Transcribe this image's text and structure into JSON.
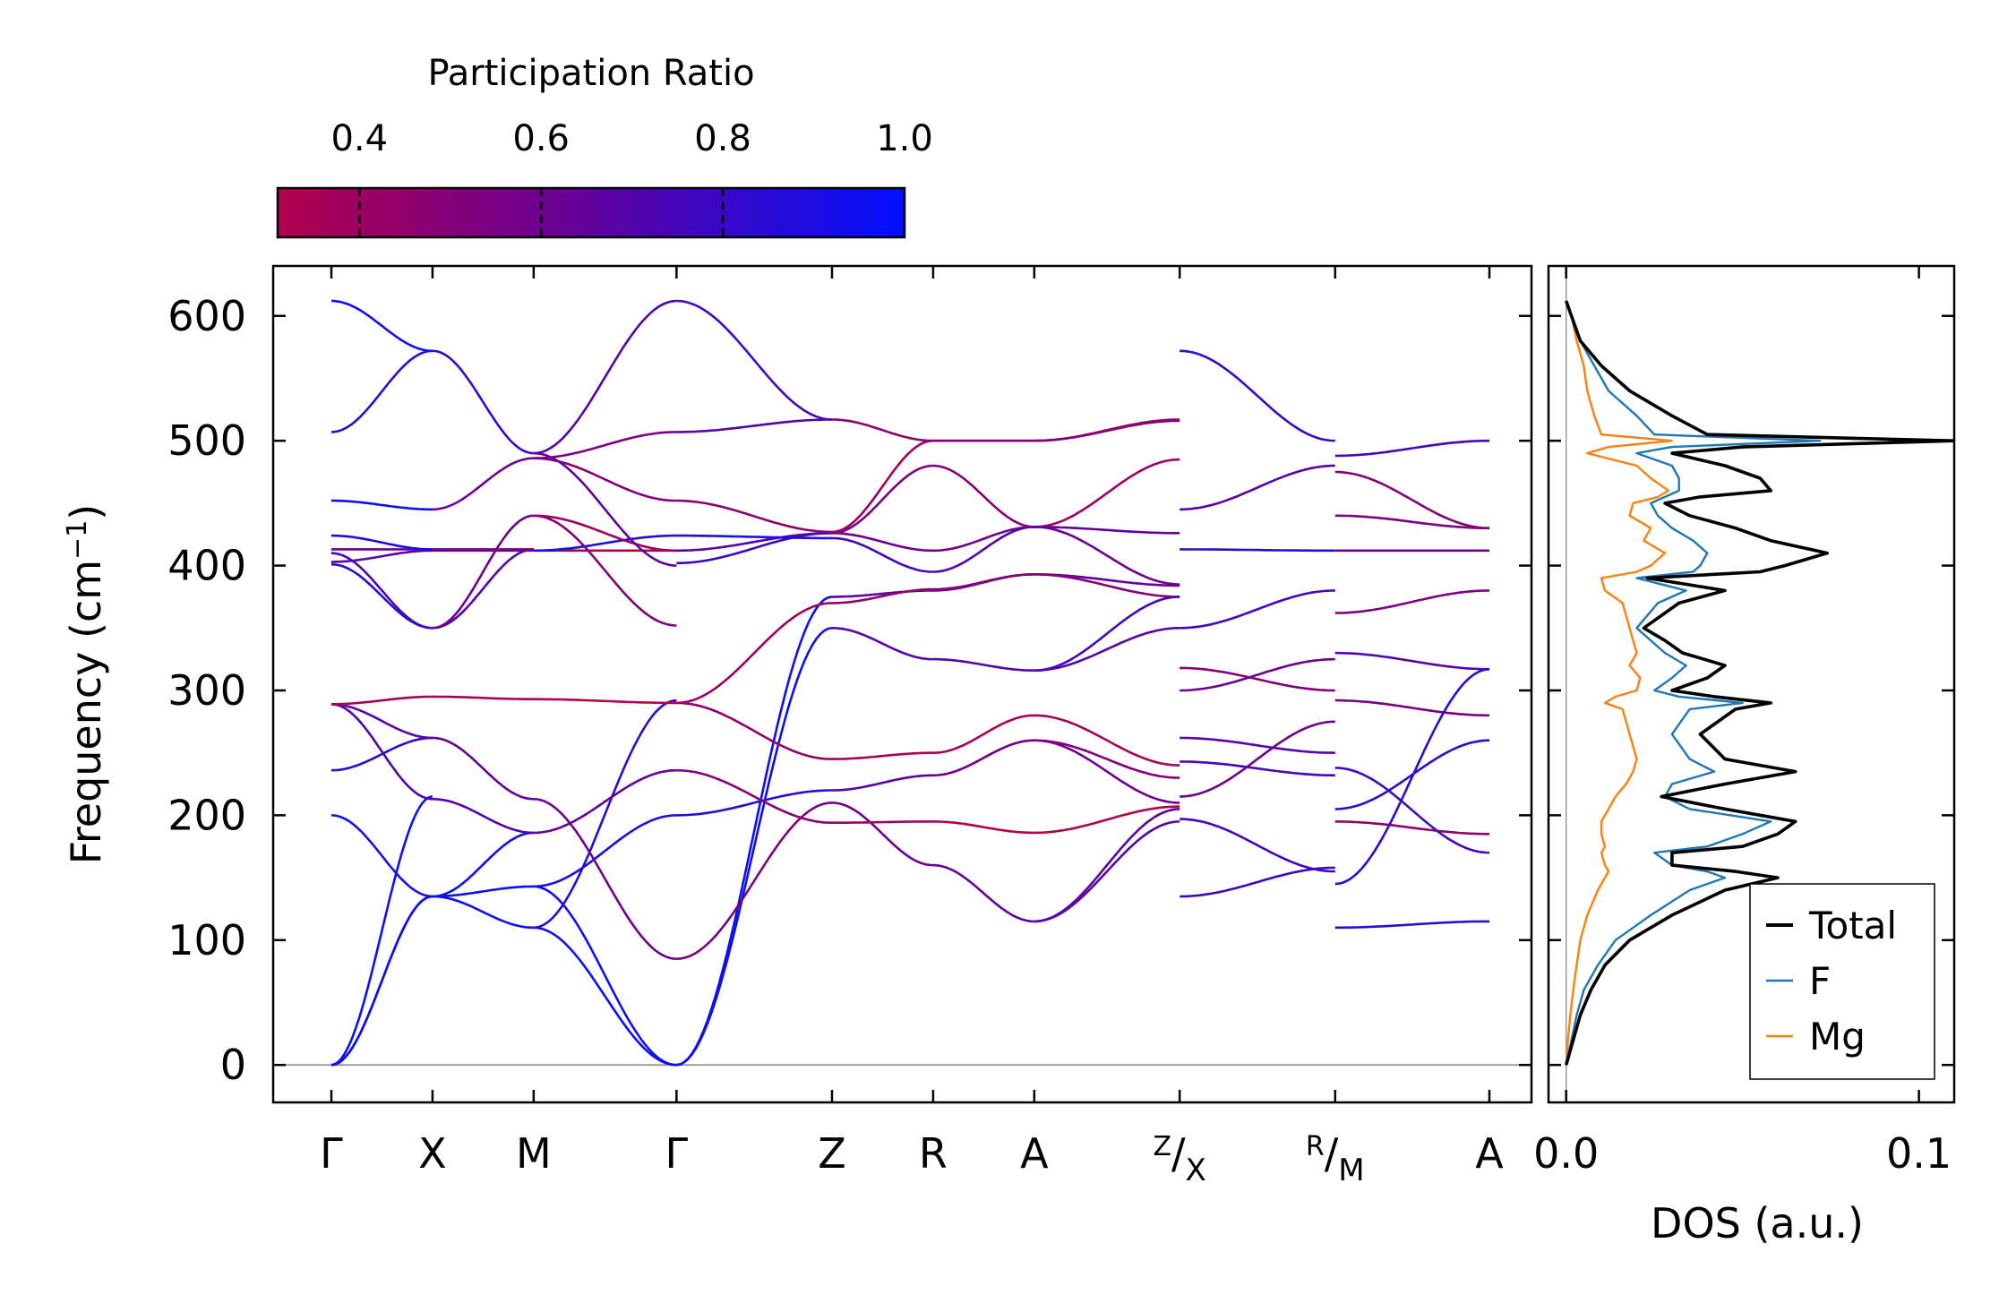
{
  "colors": {
    "cmap_low": "#b0004c",
    "cmap_mid": "#6a0094",
    "cmap_high": "#0011ff",
    "total": "#000000",
    "F": "#1f77b4",
    "Mg": "#ff7f0e",
    "zero_line": "#999999"
  },
  "chart_data": [
    {
      "type": "line",
      "name": "phonon-band-structure",
      "ylabel_main": "Frequency (cm",
      "ylabel_sup": "−1",
      "ylabel_end": ")",
      "ylim": [
        -30,
        640
      ],
      "yticks": [
        0,
        100,
        200,
        300,
        400,
        500,
        600
      ],
      "path_positions": [
        0,
        0.8,
        1.6,
        2.73,
        3.96,
        4.76,
        5.56,
        6.71,
        7.94,
        9.16
      ],
      "x_max": 9.6,
      "xticks": [
        {
          "x": 0,
          "main": "Γ",
          "sup": ""
        },
        {
          "x": 0.8,
          "main": "X",
          "sup": ""
        },
        {
          "x": 1.6,
          "main": "M",
          "sup": ""
        },
        {
          "x": 2.73,
          "main": "Γ",
          "sup": ""
        },
        {
          "x": 3.96,
          "main": "Z",
          "sup": ""
        },
        {
          "x": 4.76,
          "main": "R",
          "sup": ""
        },
        {
          "x": 5.56,
          "main": "A",
          "sup": ""
        },
        {
          "x": 6.71,
          "main": "X",
          "sup": "Z"
        },
        {
          "x": 7.94,
          "main": "M",
          "sup": "R"
        },
        {
          "x": 9.16,
          "main": "A",
          "sup": ""
        }
      ],
      "segments": [
        {
          "x0": 0,
          "x1": 0.8,
          "bands": [
            [
              0,
              135,
              0.95
            ],
            [
              0,
              135,
              0.95
            ],
            [
              0,
              215,
              0.95
            ],
            [
              200,
              135,
              0.92
            ],
            [
              236,
              262,
              0.85
            ],
            [
              289,
              213,
              0.72
            ],
            [
              289,
              262,
              0.68
            ],
            [
              289,
              295,
              0.35
            ],
            [
              401,
              350,
              0.85
            ],
            [
              403,
              412,
              0.7
            ],
            [
              410,
              350,
              0.75
            ],
            [
              413,
              413,
              0.6
            ],
            [
              424,
              413,
              0.9
            ],
            [
              452,
              445,
              0.95
            ],
            [
              507,
              572,
              0.85
            ],
            [
              612,
              572,
              0.95
            ]
          ]
        },
        {
          "x0": 0.8,
          "x1": 1.6,
          "bands": [
            [
              135,
              110,
              0.95
            ],
            [
              135,
              143,
              0.95
            ],
            [
              135,
              186,
              0.95
            ],
            [
              213,
              186,
              0.7
            ],
            [
              262,
              213,
              0.65
            ],
            [
              295,
              293,
              0.35
            ],
            [
              350,
              413,
              0.7
            ],
            [
              350,
              440,
              0.6
            ],
            [
              412,
              412,
              0.55
            ],
            [
              413,
              413,
              0.6
            ],
            [
              445,
              486,
              0.6
            ],
            [
              572,
              490,
              0.8
            ]
          ]
        },
        {
          "x0": 1.6,
          "x1": 2.73,
          "bands": [
            [
              110,
              0,
              0.95
            ],
            [
              143,
              0,
              0.95
            ],
            [
              110,
              292,
              0.85
            ],
            [
              143,
              200,
              0.9
            ],
            [
              186,
              236,
              0.65
            ],
            [
              213,
              85,
              0.6
            ],
            [
              293,
              290,
              0.3
            ],
            [
              412,
              412,
              0.3
            ],
            [
              412,
              424,
              0.9
            ],
            [
              440,
              352,
              0.5
            ],
            [
              440,
              412,
              0.4
            ],
            [
              486,
              452,
              0.5
            ],
            [
              486,
              507,
              0.55
            ],
            [
              490,
              612,
              0.7
            ],
            [
              490,
              400,
              0.65
            ]
          ]
        },
        {
          "x0": 2.73,
          "x1": 3.96,
          "bands": [
            [
              0,
              350,
              0.95
            ],
            [
              0,
              375,
              0.95
            ],
            [
              85,
              210,
              0.55
            ],
            [
              200,
              220,
              0.85
            ],
            [
              236,
              194,
              0.5
            ],
            [
              290,
              245,
              0.45
            ],
            [
              290,
              370,
              0.4
            ],
            [
              402,
              426,
              0.8
            ],
            [
              412,
              426,
              0.7
            ],
            [
              424,
              422,
              0.9
            ],
            [
              452,
              427,
              0.45
            ],
            [
              507,
              517,
              0.7
            ],
            [
              612,
              517,
              0.75
            ]
          ]
        },
        {
          "x0": 3.96,
          "x1": 4.76,
          "bands": [
            [
              350,
              325,
              0.7
            ],
            [
              375,
              380,
              0.65
            ],
            [
              210,
              160,
              0.6
            ],
            [
              220,
              232,
              0.7
            ],
            [
              194,
              195,
              0.4
            ],
            [
              245,
              250,
              0.35
            ],
            [
              370,
              381,
              0.45
            ],
            [
              426,
              412,
              0.6
            ],
            [
              426,
              480,
              0.55
            ],
            [
              422,
              395,
              0.75
            ],
            [
              427,
              500,
              0.4
            ],
            [
              517,
              500,
              0.45
            ]
          ]
        },
        {
          "x0": 4.76,
          "x1": 5.56,
          "bands": [
            [
              325,
              316,
              0.7
            ],
            [
              380,
              393,
              0.6
            ],
            [
              160,
              115,
              0.65
            ],
            [
              232,
              260,
              0.6
            ],
            [
              195,
              186,
              0.3
            ],
            [
              250,
              280,
              0.35
            ],
            [
              381,
              393,
              0.5
            ],
            [
              412,
              431,
              0.6
            ],
            [
              480,
              431,
              0.5
            ],
            [
              395,
              431,
              0.7
            ],
            [
              500,
              500,
              0.45
            ],
            [
              500,
              500,
              0.5
            ]
          ]
        },
        {
          "x0": 5.56,
          "x1": 6.71,
          "bands": [
            [
              316,
              350,
              0.7
            ],
            [
              393,
              384,
              0.65
            ],
            [
              115,
              205,
              0.65
            ],
            [
              260,
              210,
              0.6
            ],
            [
              186,
              207,
              0.3
            ],
            [
              280,
              240,
              0.35
            ],
            [
              393,
              375,
              0.5
            ],
            [
              431,
              385,
              0.6
            ],
            [
              431,
              485,
              0.4
            ],
            [
              431,
              426,
              0.65
            ],
            [
              500,
              517,
              0.4
            ],
            [
              500,
              516,
              0.5
            ],
            [
              115,
              195,
              0.7
            ],
            [
              260,
              230,
              0.5
            ],
            [
              316,
              375,
              0.75
            ]
          ]
        },
        {
          "x0": 6.71,
          "x1": 7.94,
          "bands": [
            [
              572,
              500,
              0.8
            ],
            [
              445,
              480,
              0.7
            ],
            [
              413,
              412,
              0.85
            ],
            [
              350,
              380,
              0.75
            ],
            [
              318,
              300,
              0.5
            ],
            [
              262,
              250,
              0.7
            ],
            [
              243,
              232,
              0.75
            ],
            [
              135,
              158,
              0.8
            ],
            [
              197,
              155,
              0.75
            ],
            [
              300,
              325,
              0.6
            ],
            [
              215,
              275,
              0.6
            ]
          ]
        },
        {
          "x0": 7.94,
          "x1": 9.16,
          "bands": [
            [
              488,
              500,
              0.75
            ],
            [
              475,
              430,
              0.5
            ],
            [
              440,
              430,
              0.55
            ],
            [
              412,
              412,
              0.6
            ],
            [
              330,
              317,
              0.7
            ],
            [
              292,
              280,
              0.55
            ],
            [
              205,
              260,
              0.85
            ],
            [
              195,
              185,
              0.45
            ],
            [
              145,
              317,
              0.85
            ],
            [
              110,
              115,
              0.85
            ],
            [
              238,
              170,
              0.75
            ],
            [
              362,
              380,
              0.55
            ]
          ]
        }
      ]
    },
    {
      "type": "line",
      "name": "dos",
      "xlabel": "DOS (a.u.)",
      "xlim": [
        -0.005,
        0.11
      ],
      "xticks": [
        0.0,
        0.1
      ],
      "xtick_labels": [
        "0.0",
        "0.1"
      ],
      "freq": [
        0,
        20,
        40,
        60,
        80,
        100,
        120,
        140,
        150,
        155,
        160,
        170,
        175,
        185,
        195,
        205,
        215,
        225,
        235,
        245,
        265,
        285,
        290,
        295,
        300,
        310,
        320,
        330,
        340,
        350,
        370,
        380,
        390,
        395,
        400,
        410,
        420,
        430,
        440,
        450,
        455,
        460,
        470,
        480,
        490,
        495,
        500,
        505,
        520,
        540,
        560,
        580,
        600,
        612
      ],
      "series": [
        {
          "name": "Total",
          "values": [
            0.0,
            0.002,
            0.004,
            0.007,
            0.011,
            0.018,
            0.03,
            0.045,
            0.06,
            0.048,
            0.03,
            0.03,
            0.05,
            0.06,
            0.065,
            0.045,
            0.027,
            0.045,
            0.065,
            0.045,
            0.038,
            0.048,
            0.058,
            0.042,
            0.03,
            0.04,
            0.045,
            0.033,
            0.028,
            0.022,
            0.032,
            0.045,
            0.023,
            0.055,
            0.062,
            0.074,
            0.058,
            0.048,
            0.035,
            0.028,
            0.038,
            0.058,
            0.055,
            0.045,
            0.03,
            0.05,
            0.11,
            0.04,
            0.03,
            0.018,
            0.01,
            0.004,
            0.0015,
            0.0
          ]
        },
        {
          "name": "F",
          "values": [
            0.0,
            0.0015,
            0.003,
            0.005,
            0.009,
            0.014,
            0.024,
            0.035,
            0.045,
            0.04,
            0.03,
            0.025,
            0.04,
            0.05,
            0.058,
            0.035,
            0.028,
            0.03,
            0.042,
            0.035,
            0.03,
            0.035,
            0.05,
            0.032,
            0.025,
            0.03,
            0.034,
            0.028,
            0.024,
            0.02,
            0.026,
            0.034,
            0.02,
            0.036,
            0.038,
            0.04,
            0.036,
            0.03,
            0.026,
            0.024,
            0.028,
            0.032,
            0.032,
            0.03,
            0.02,
            0.03,
            0.072,
            0.025,
            0.02,
            0.012,
            0.008,
            0.004,
            0.0015,
            0.0
          ]
        },
        {
          "name": "Mg",
          "values": [
            0.0,
            0.0005,
            0.0012,
            0.002,
            0.003,
            0.004,
            0.006,
            0.009,
            0.011,
            0.012,
            0.011,
            0.01,
            0.011,
            0.01,
            0.01,
            0.012,
            0.014,
            0.017,
            0.019,
            0.02,
            0.018,
            0.016,
            0.011,
            0.014,
            0.02,
            0.021,
            0.018,
            0.02,
            0.019,
            0.018,
            0.016,
            0.011,
            0.01,
            0.02,
            0.024,
            0.028,
            0.022,
            0.024,
            0.018,
            0.019,
            0.026,
            0.029,
            0.024,
            0.02,
            0.006,
            0.012,
            0.03,
            0.01,
            0.008,
            0.006,
            0.005,
            0.003,
            0.0015,
            0.0
          ]
        }
      ],
      "legend": {
        "position": "bottom-right",
        "entries": [
          "Total",
          "F",
          "Mg"
        ]
      }
    }
  ],
  "colorbar": {
    "label": "Participation Ratio",
    "vmin": 0.31,
    "vmax": 1.0,
    "ticks": [
      0.4,
      0.6,
      0.8,
      1.0
    ],
    "tick_labels": [
      "0.4",
      "0.6",
      "0.8",
      "1.0"
    ]
  }
}
